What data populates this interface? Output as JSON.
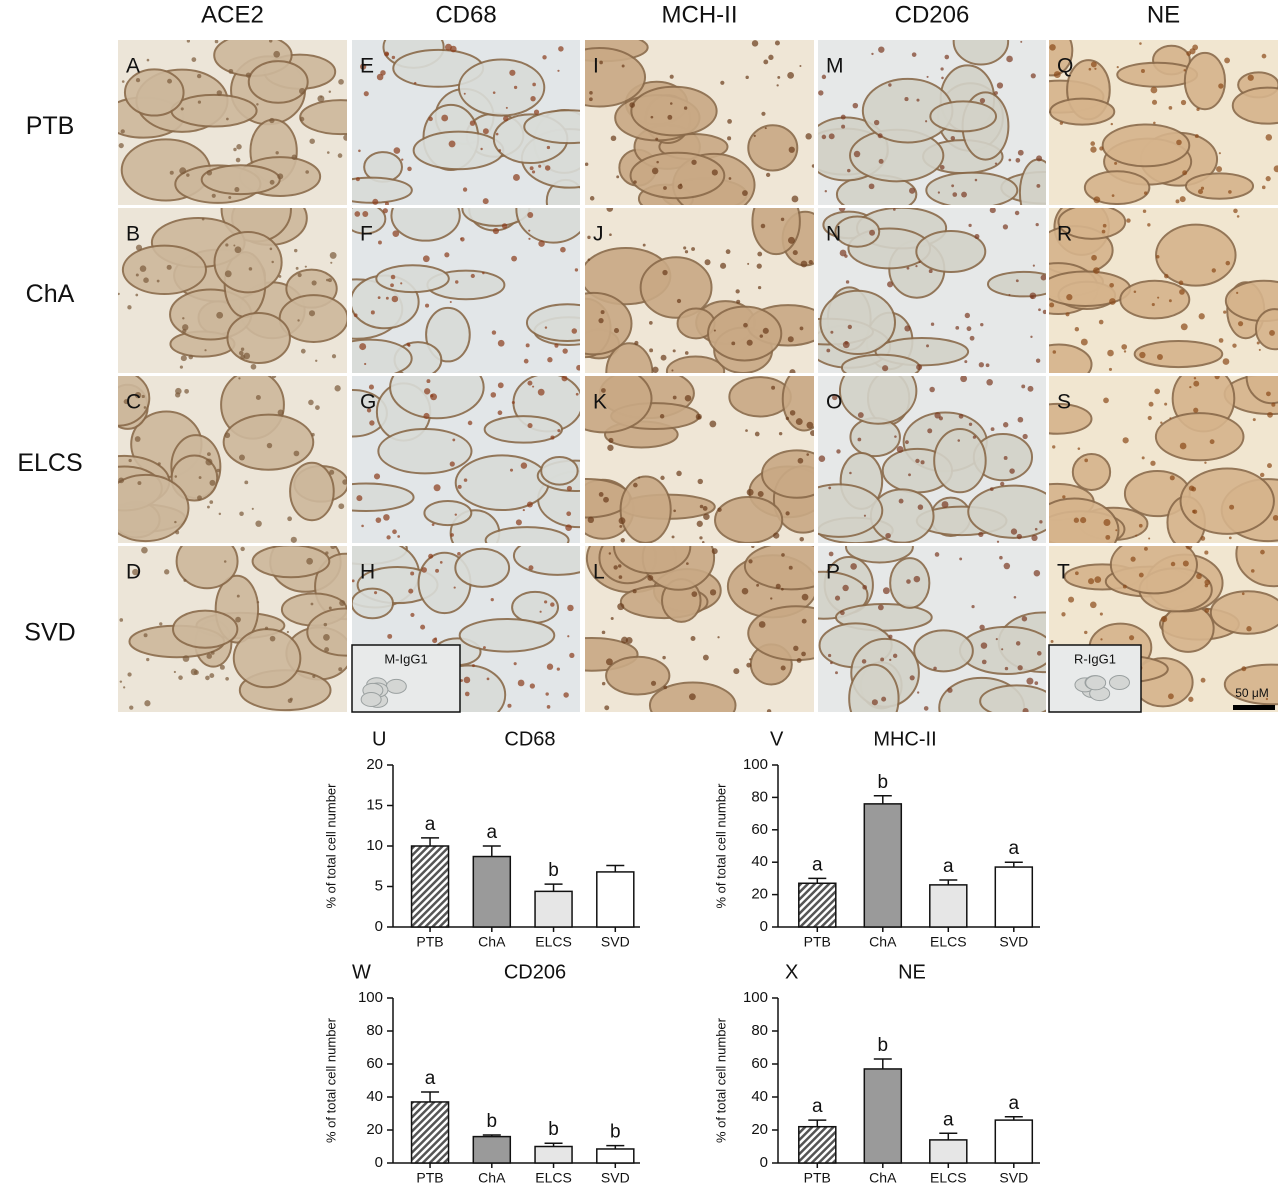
{
  "figure": {
    "column_headers": [
      "ACE2",
      "CD68",
      "MCH-II",
      "CD206",
      "NE"
    ],
    "row_labels": [
      "PTB",
      "ChA",
      "ELCS",
      "SVD"
    ],
    "panels": [
      [
        "A",
        "E",
        "I",
        "M",
        "Q"
      ],
      [
        "B",
        "F",
        "J",
        "N",
        "R"
      ],
      [
        "C",
        "G",
        "K",
        "O",
        "S"
      ],
      [
        "D",
        "H",
        "L",
        "P",
        "T"
      ]
    ],
    "insets": [
      "M-IgG1",
      "R-IgG1"
    ],
    "scale_bar": "50 μM"
  },
  "chart_data": [
    {
      "type": "bar",
      "panel": "U",
      "title": "CD68",
      "y_label": "% of total cell number",
      "categories": [
        "PTB",
        "ChA",
        "ELCS",
        "SVD"
      ],
      "values": [
        10,
        8.7,
        4.4,
        6.8
      ],
      "errors": [
        1,
        1.3,
        0.9,
        0.8
      ],
      "annotations": [
        "a",
        "a",
        "b",
        null
      ],
      "colors": [
        "#555555",
        "#9a9a9a",
        "#e6e6e6",
        "#ffffff"
      ],
      "ylim": [
        0,
        20
      ],
      "yticks": [
        0,
        5,
        10,
        15,
        20
      ]
    },
    {
      "type": "bar",
      "panel": "V",
      "title": "MHC-II",
      "y_label": "% of total cell number",
      "categories": [
        "PTB",
        "ChA",
        "ELCS",
        "SVD"
      ],
      "values": [
        27,
        76,
        26,
        37
      ],
      "errors": [
        3,
        5,
        3,
        3
      ],
      "annotations": [
        "a",
        "b",
        "a",
        "a"
      ],
      "colors": [
        "#555555",
        "#9a9a9a",
        "#e6e6e6",
        "#ffffff"
      ],
      "ylim": [
        0,
        100
      ],
      "yticks": [
        0,
        20,
        40,
        60,
        80,
        100
      ]
    },
    {
      "type": "bar",
      "panel": "W",
      "title": "CD206",
      "y_label": "% of total cell number",
      "categories": [
        "PTB",
        "ChA",
        "ELCS",
        "SVD"
      ],
      "values": [
        37,
        16,
        10,
        8.5
      ],
      "errors": [
        6,
        1,
        2,
        2
      ],
      "annotations": [
        "a",
        "b",
        "b",
        "b"
      ],
      "colors": [
        "#555555",
        "#9a9a9a",
        "#e6e6e6",
        "#ffffff"
      ],
      "ylim": [
        0,
        100
      ],
      "yticks": [
        0,
        20,
        40,
        60,
        80,
        100
      ]
    },
    {
      "type": "bar",
      "panel": "X",
      "title": "NE",
      "y_label": "% of total cell number",
      "categories": [
        "PTB",
        "ChA",
        "ELCS",
        "SVD"
      ],
      "values": [
        22,
        57,
        14,
        26
      ],
      "errors": [
        4,
        6,
        4,
        2
      ],
      "annotations": [
        "a",
        "b",
        "a",
        "a"
      ],
      "colors": [
        "#555555",
        "#9a9a9a",
        "#e6e6e6",
        "#ffffff"
      ],
      "ylim": [
        0,
        100
      ],
      "yticks": [
        0,
        20,
        40,
        60,
        80,
        100
      ]
    }
  ]
}
